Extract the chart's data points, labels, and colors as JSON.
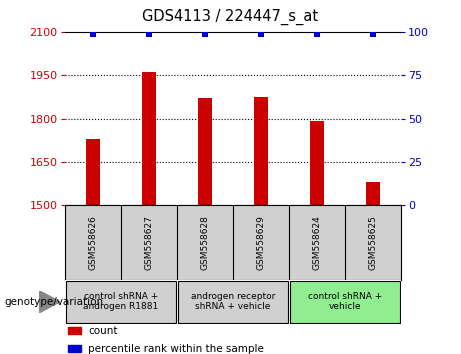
{
  "title": "GDS4113 / 224447_s_at",
  "samples": [
    "GSM558626",
    "GSM558627",
    "GSM558628",
    "GSM558629",
    "GSM558624",
    "GSM558625"
  ],
  "counts": [
    1730,
    1960,
    1870,
    1875,
    1790,
    1580
  ],
  "percentiles": [
    99,
    99,
    99,
    99,
    99,
    99
  ],
  "ylim_left": [
    1500,
    2100
  ],
  "ylim_right": [
    0,
    100
  ],
  "yticks_left": [
    1500,
    1650,
    1800,
    1950,
    2100
  ],
  "yticks_right": [
    0,
    25,
    50,
    75,
    100
  ],
  "groups": [
    {
      "label": "control shRNA +\nandrogen R1881",
      "start": 0,
      "end": 2,
      "color": "#d0d0d0"
    },
    {
      "label": "androgen receptor\nshRNA + vehicle",
      "start": 2,
      "end": 4,
      "color": "#d0d0d0"
    },
    {
      "label": "control shRNA +\nvehicle",
      "start": 4,
      "end": 6,
      "color": "#90ee90"
    }
  ],
  "bar_color": "#cc0000",
  "dot_color": "#0000cc",
  "grid_color": "#000000",
  "background_color": "#ffffff",
  "left_color": "#cc0000",
  "right_color": "#0000bb",
  "bar_width": 0.25,
  "genotype_label": "genotype/variation",
  "legend_count_label": "count",
  "legend_pct_label": "percentile rank within the sample"
}
